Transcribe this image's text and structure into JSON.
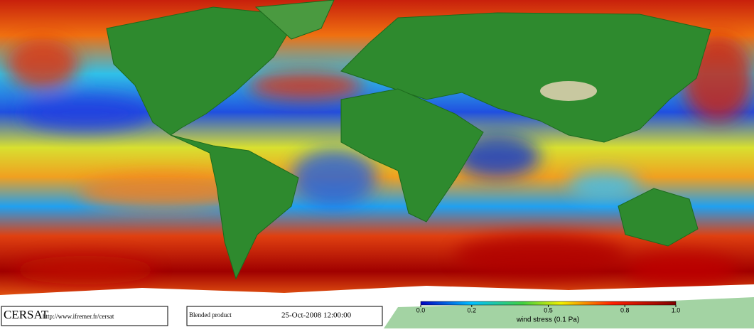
{
  "footer": {
    "logo": "CERSAT",
    "url": "http://www.ifremer.fr/cersat",
    "product": "Blended product",
    "date": "25-Oct-2008 12:00:00"
  },
  "colorbar": {
    "lim": [
      0,
      1
    ],
    "ticks": [
      {
        "value": 0,
        "label": "0.0"
      },
      0.2,
      0.5,
      0.8,
      {
        "value": 1,
        "label": "1.0"
      }
    ],
    "label": "wind stress (0.1 Pa)"
  }
}
